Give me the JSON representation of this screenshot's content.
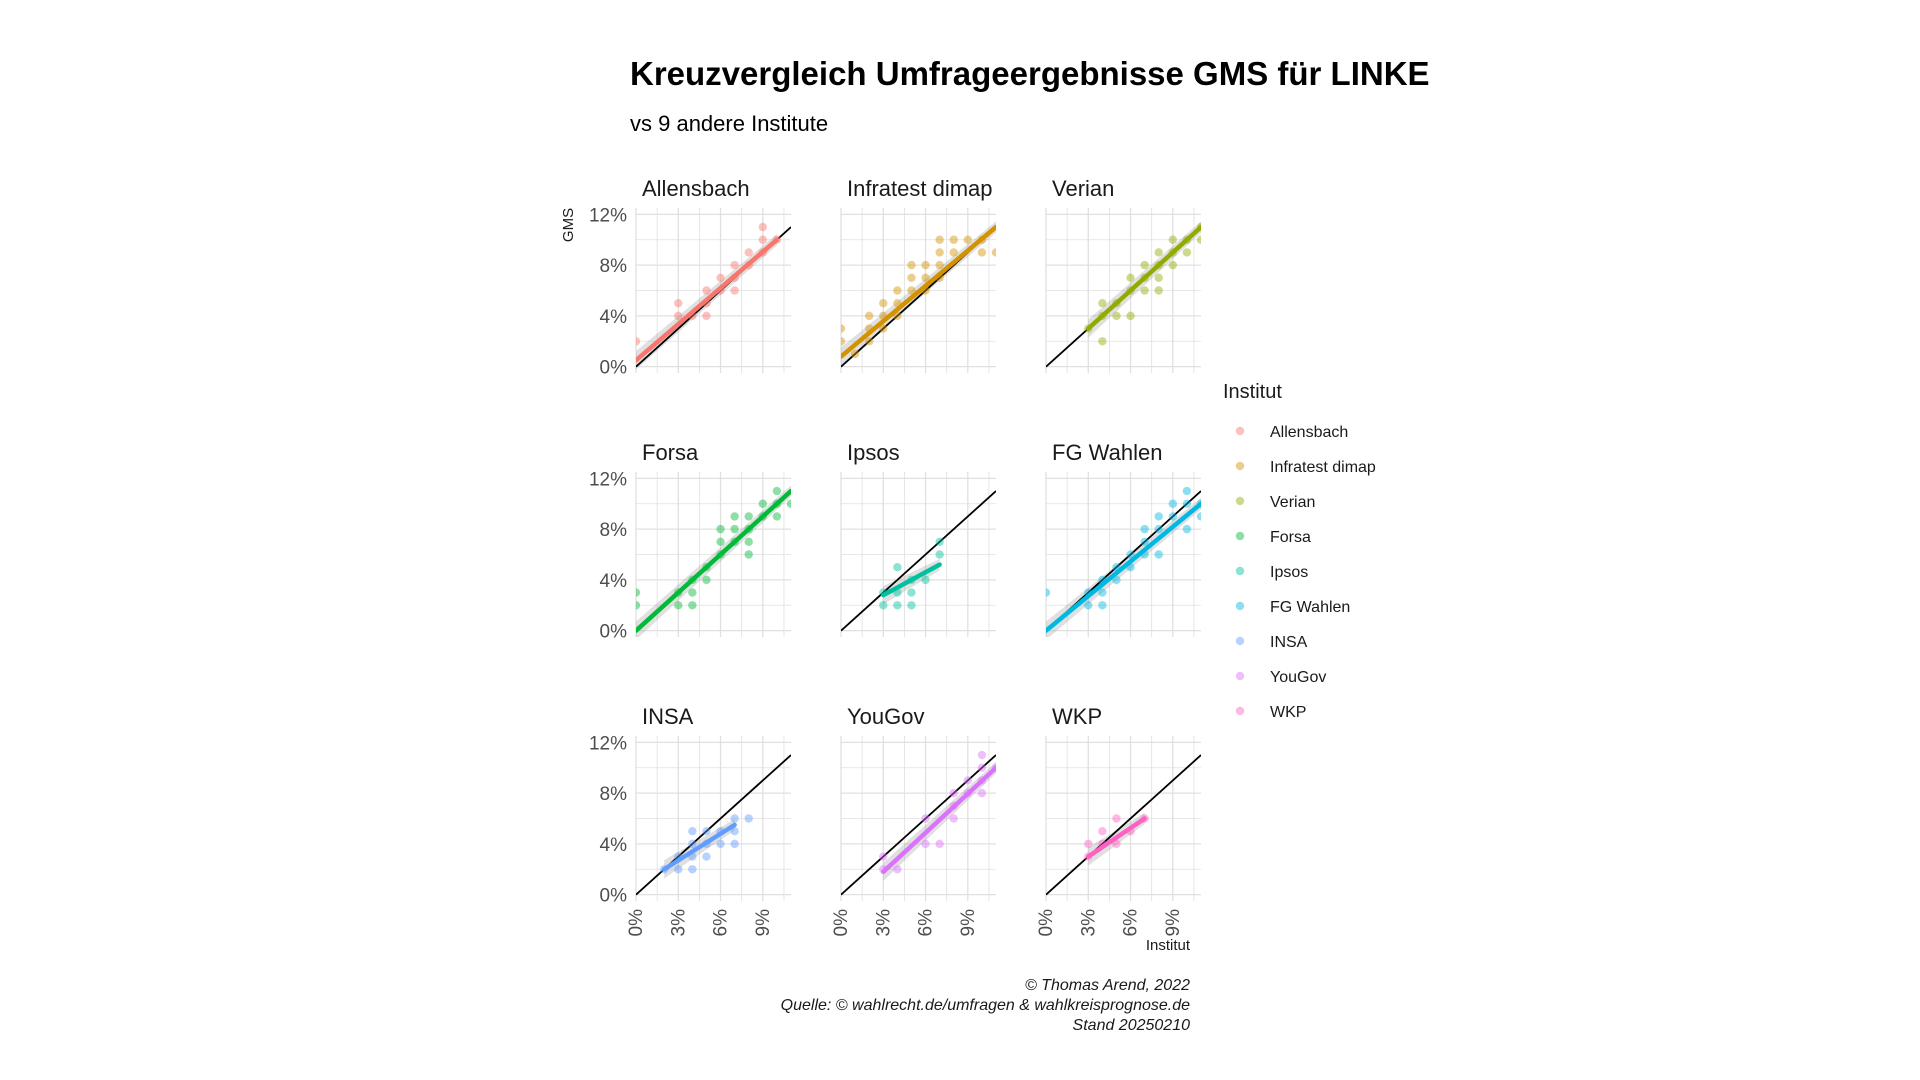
{
  "chart_data": {
    "type": "scatter",
    "title": "Kreuzvergleich Umfrageergebnisse GMS für LINKE",
    "subtitle": "vs 9 andere Institute",
    "xlabel": "Institut",
    "ylabel": "GMS",
    "x_range": [
      0,
      11
    ],
    "y_range": [
      -0.5,
      12.5
    ],
    "x_ticks": [
      0,
      3,
      6,
      9
    ],
    "x_tick_labels": [
      "0%",
      "3%",
      "6%",
      "9%"
    ],
    "y_ticks": [
      0,
      4,
      8,
      12
    ],
    "y_tick_labels": [
      "0%",
      "4%",
      "8%",
      "12%"
    ],
    "grid": true,
    "reference_line": "y = x",
    "legend_title": "Institut",
    "legend_placement": "right",
    "caption": [
      "© Thomas Arend, 2022",
      "Quelle: © wahlrecht.de/umfragen & wahlkreisprognose.de",
      "Stand 20250210"
    ],
    "panels": [
      {
        "name": "Allensbach",
        "color": "#F8766D",
        "fit": [
          [
            0,
            0.5
          ],
          [
            10,
            10
          ]
        ],
        "points": [
          [
            0,
            2
          ],
          [
            3,
            4
          ],
          [
            3,
            5
          ],
          [
            4,
            4
          ],
          [
            5,
            4
          ],
          [
            5,
            5
          ],
          [
            5,
            6
          ],
          [
            6,
            7
          ],
          [
            6,
            6
          ],
          [
            7,
            8
          ],
          [
            7,
            7
          ],
          [
            7,
            6
          ],
          [
            8,
            8
          ],
          [
            8,
            9
          ],
          [
            9,
            10
          ],
          [
            9,
            9
          ],
          [
            9,
            11
          ],
          [
            10,
            10
          ]
        ]
      },
      {
        "name": "Infratest dimap",
        "color": "#D39200",
        "fit": [
          [
            0,
            0.8
          ],
          [
            11,
            11
          ]
        ],
        "points": [
          [
            0,
            2
          ],
          [
            0,
            3
          ],
          [
            1,
            1
          ],
          [
            2,
            2
          ],
          [
            2,
            3
          ],
          [
            2,
            4
          ],
          [
            3,
            3
          ],
          [
            3,
            4
          ],
          [
            3,
            5
          ],
          [
            4,
            4
          ],
          [
            4,
            5
          ],
          [
            4,
            6
          ],
          [
            5,
            6
          ],
          [
            5,
            7
          ],
          [
            5,
            8
          ],
          [
            6,
            6
          ],
          [
            6,
            7
          ],
          [
            6,
            8
          ],
          [
            7,
            7
          ],
          [
            7,
            8
          ],
          [
            7,
            9
          ],
          [
            7,
            10
          ],
          [
            8,
            9
          ],
          [
            8,
            10
          ],
          [
            9,
            10
          ],
          [
            10,
            9
          ],
          [
            10,
            10
          ],
          [
            11,
            9
          ]
        ]
      },
      {
        "name": "Verian",
        "color": "#93AA00",
        "fit": [
          [
            3,
            3
          ],
          [
            11,
            11
          ]
        ],
        "points": [
          [
            3,
            3
          ],
          [
            4,
            2
          ],
          [
            4,
            4
          ],
          [
            4,
            5
          ],
          [
            5,
            4
          ],
          [
            5,
            5
          ],
          [
            6,
            4
          ],
          [
            6,
            6
          ],
          [
            6,
            7
          ],
          [
            7,
            6
          ],
          [
            7,
            7
          ],
          [
            7,
            8
          ],
          [
            8,
            6
          ],
          [
            8,
            7
          ],
          [
            8,
            8
          ],
          [
            8,
            9
          ],
          [
            9,
            8
          ],
          [
            9,
            9
          ],
          [
            9,
            10
          ],
          [
            10,
            9
          ],
          [
            10,
            10
          ],
          [
            11,
            10
          ],
          [
            11,
            11
          ]
        ]
      },
      {
        "name": "Forsa",
        "color": "#00BA38",
        "fit": [
          [
            0,
            0
          ],
          [
            11,
            11
          ]
        ],
        "points": [
          [
            0,
            2
          ],
          [
            0,
            3
          ],
          [
            3,
            2
          ],
          [
            3,
            3
          ],
          [
            4,
            2
          ],
          [
            4,
            3
          ],
          [
            4,
            4
          ],
          [
            5,
            4
          ],
          [
            5,
            5
          ],
          [
            6,
            6
          ],
          [
            6,
            7
          ],
          [
            6,
            8
          ],
          [
            7,
            7
          ],
          [
            7,
            8
          ],
          [
            7,
            9
          ],
          [
            8,
            6
          ],
          [
            8,
            7
          ],
          [
            8,
            8
          ],
          [
            8,
            9
          ],
          [
            9,
            9
          ],
          [
            9,
            10
          ],
          [
            10,
            9
          ],
          [
            10,
            10
          ],
          [
            10,
            11
          ],
          [
            11,
            10
          ]
        ]
      },
      {
        "name": "Ipsos",
        "color": "#00C19F",
        "fit": [
          [
            3,
            2.8
          ],
          [
            7,
            5.2
          ]
        ],
        "points": [
          [
            3,
            2
          ],
          [
            3,
            3
          ],
          [
            4,
            2
          ],
          [
            4,
            3
          ],
          [
            4,
            5
          ],
          [
            5,
            2
          ],
          [
            5,
            3
          ],
          [
            5,
            4
          ],
          [
            6,
            4
          ],
          [
            7,
            6
          ],
          [
            7,
            7
          ]
        ]
      },
      {
        "name": "FG Wahlen",
        "color": "#00B9E3",
        "fit": [
          [
            0,
            0
          ],
          [
            11,
            10
          ]
        ],
        "points": [
          [
            0,
            3
          ],
          [
            3,
            2
          ],
          [
            3,
            3
          ],
          [
            4,
            2
          ],
          [
            4,
            3
          ],
          [
            4,
            4
          ],
          [
            5,
            4
          ],
          [
            5,
            5
          ],
          [
            6,
            5
          ],
          [
            6,
            6
          ],
          [
            7,
            6
          ],
          [
            7,
            7
          ],
          [
            7,
            8
          ],
          [
            8,
            6
          ],
          [
            8,
            8
          ],
          [
            8,
            9
          ],
          [
            9,
            9
          ],
          [
            9,
            10
          ],
          [
            10,
            8
          ],
          [
            10,
            10
          ],
          [
            10,
            11
          ],
          [
            11,
            9
          ],
          [
            11,
            10
          ]
        ]
      },
      {
        "name": "INSA",
        "color": "#619CFF",
        "fit": [
          [
            2,
            2
          ],
          [
            7,
            5.5
          ]
        ],
        "points": [
          [
            2,
            2
          ],
          [
            3,
            2
          ],
          [
            3,
            3
          ],
          [
            4,
            2
          ],
          [
            4,
            3
          ],
          [
            4,
            4
          ],
          [
            4,
            5
          ],
          [
            5,
            3
          ],
          [
            5,
            4
          ],
          [
            5,
            5
          ],
          [
            6,
            4
          ],
          [
            6,
            5
          ],
          [
            7,
            4
          ],
          [
            7,
            5
          ],
          [
            7,
            6
          ],
          [
            8,
            6
          ]
        ]
      },
      {
        "name": "YouGov",
        "color": "#DB72FB",
        "fit": [
          [
            3,
            1.8
          ],
          [
            11,
            10
          ]
        ],
        "points": [
          [
            3,
            2
          ],
          [
            3,
            3
          ],
          [
            4,
            2
          ],
          [
            6,
            4
          ],
          [
            6,
            6
          ],
          [
            7,
            4
          ],
          [
            8,
            6
          ],
          [
            8,
            7
          ],
          [
            8,
            8
          ],
          [
            9,
            8
          ],
          [
            9,
            9
          ],
          [
            10,
            8
          ],
          [
            10,
            9
          ],
          [
            10,
            10
          ],
          [
            10,
            11
          ],
          [
            11,
            10
          ]
        ]
      },
      {
        "name": "WKP",
        "color": "#FF61C3",
        "fit": [
          [
            3,
            3
          ],
          [
            7,
            6
          ]
        ],
        "points": [
          [
            3,
            3
          ],
          [
            3,
            4
          ],
          [
            4,
            4
          ],
          [
            4,
            5
          ],
          [
            5,
            4
          ],
          [
            5,
            6
          ],
          [
            6,
            5
          ],
          [
            7,
            6
          ]
        ]
      }
    ]
  }
}
